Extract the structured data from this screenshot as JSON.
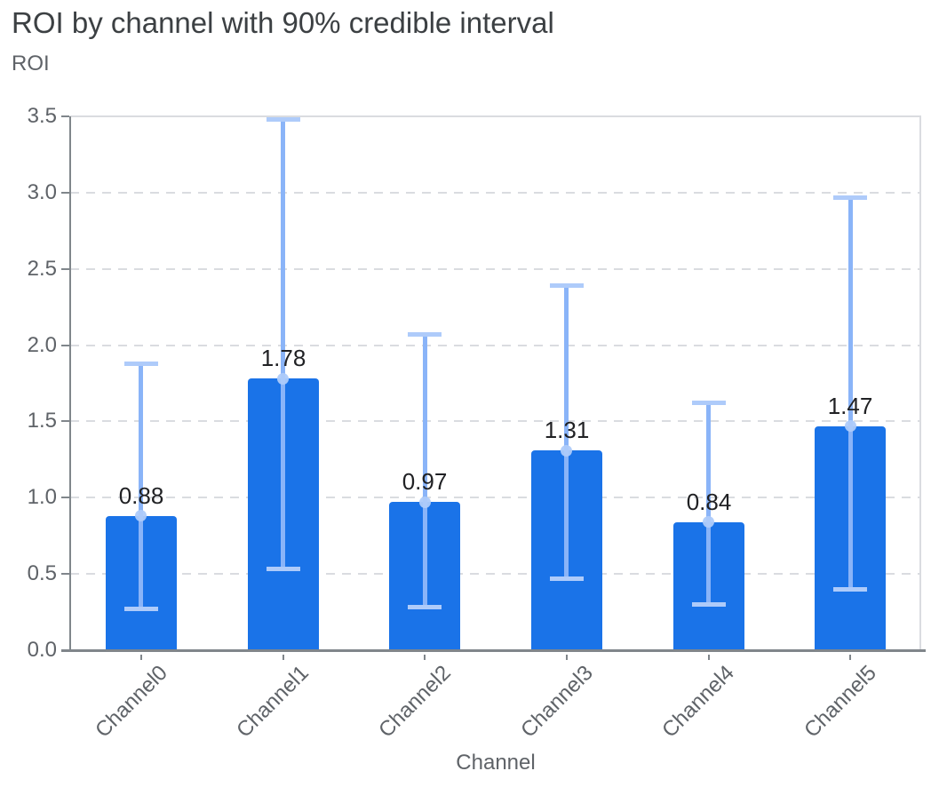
{
  "chart_data": {
    "type": "bar",
    "title": "ROI by channel with 90% credible interval",
    "ylabel": "ROI",
    "xlabel": "Channel",
    "categories": [
      "Channel0",
      "Channel1",
      "Channel2",
      "Channel3",
      "Channel4",
      "Channel5"
    ],
    "series": [
      {
        "name": "ROI",
        "values": [
          0.88,
          1.78,
          0.97,
          1.31,
          0.84,
          1.47
        ]
      }
    ],
    "value_labels": [
      "0.88",
      "1.78",
      "0.97",
      "1.31",
      "0.84",
      "1.47"
    ],
    "error_bars": {
      "label": "90% credible interval",
      "low": [
        0.27,
        0.53,
        0.28,
        0.47,
        0.3,
        0.4
      ],
      "high": [
        1.88,
        3.48,
        2.07,
        2.39,
        1.62,
        2.97
      ]
    },
    "ylim": [
      0,
      3.5
    ],
    "ytick_step": 0.5,
    "ytick_labels": [
      "0.0",
      "0.5",
      "1.0",
      "1.5",
      "2.0",
      "2.5",
      "3.0",
      "3.5"
    ],
    "grid": "horizontal-dashed",
    "legend": "none",
    "colors": {
      "bar": "#1a73e8",
      "error_stem": "#8ab4f8",
      "error_cap": "#aecbfa",
      "mean_marker": "#aecbfa",
      "grid": "#dadce0",
      "axis": "#80868b",
      "tick_label": "#5f6368",
      "value_label": "#202124",
      "title": "#3c4043"
    }
  }
}
